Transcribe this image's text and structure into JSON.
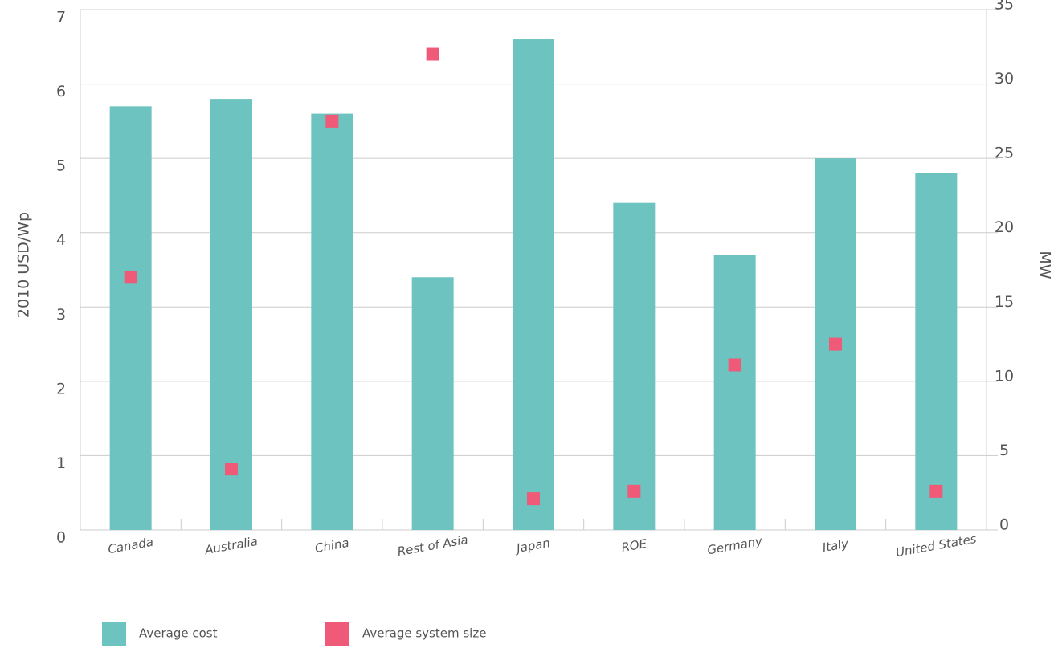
{
  "chart_data": {
    "type": "bar",
    "categories": [
      "Canada",
      "Australia",
      "China",
      "Rest of Asia",
      "Japan",
      "ROE",
      "Germany",
      "Italy",
      "United States"
    ],
    "series": [
      {
        "name": "Average cost",
        "type": "bar",
        "color": "#6dc3bf",
        "axis": "y",
        "values": [
          5.7,
          5.8,
          5.6,
          3.4,
          6.6,
          4.4,
          3.7,
          5.0,
          4.8
        ]
      },
      {
        "name": "Average system size",
        "type": "scatter",
        "color": "#ee5a78",
        "axis": "y2",
        "values": [
          17.0,
          4.1,
          27.5,
          32,
          2.1,
          2.6,
          11.1,
          12.5,
          2.6
        ]
      }
    ],
    "ylabel": "2010 USD/Wp",
    "y2label": "MW",
    "ylim": [
      0,
      7
    ],
    "yticks": [
      0,
      1,
      2,
      3,
      4,
      5,
      6,
      7
    ],
    "y2lim": [
      0,
      35
    ],
    "y2ticks": [
      0,
      5,
      10,
      15,
      20,
      25,
      30,
      35
    ],
    "grid": true,
    "legend": "bottom"
  }
}
